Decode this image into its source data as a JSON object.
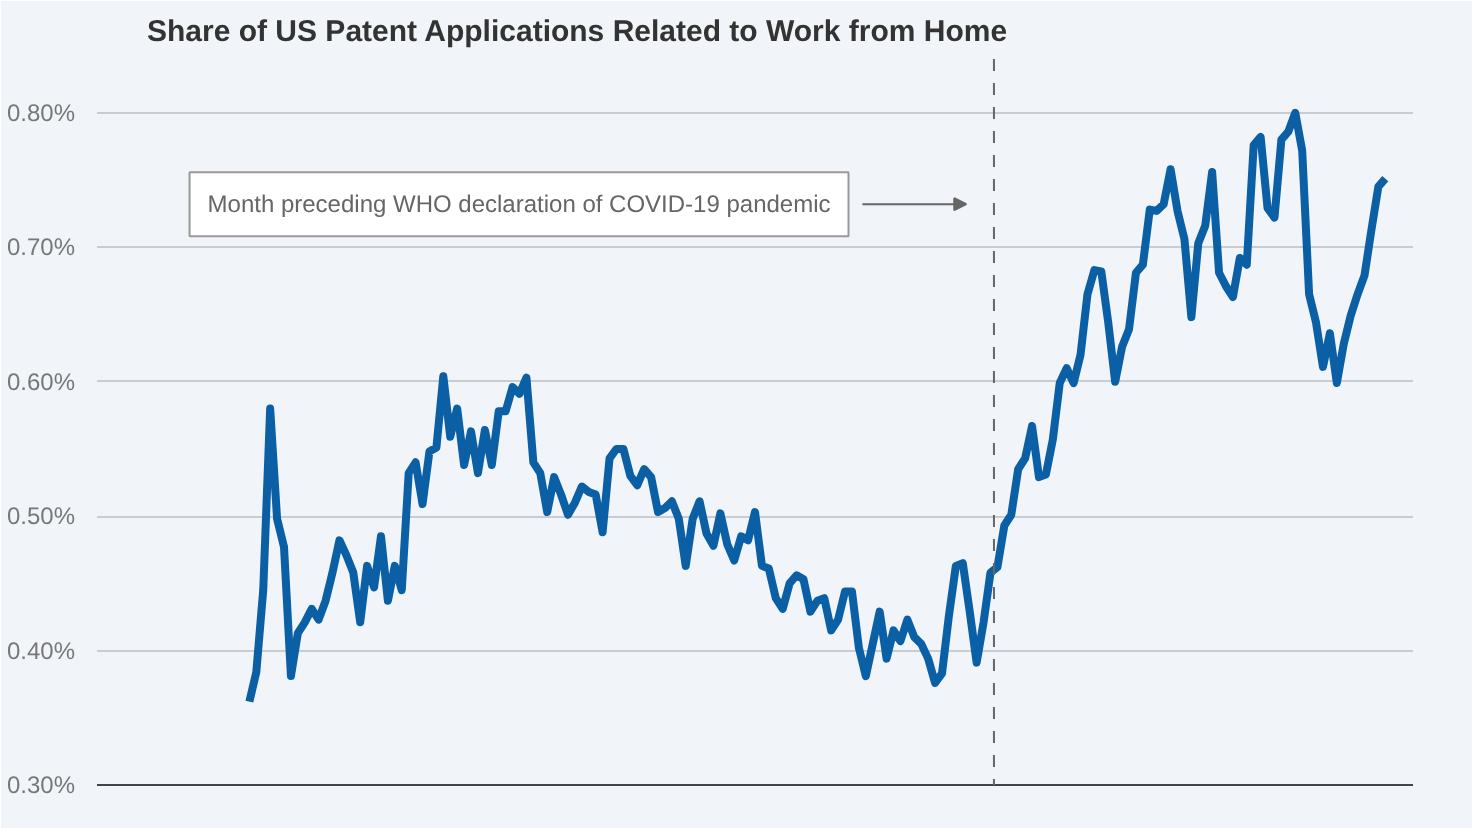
{
  "chart_data": {
    "type": "line",
    "title": "Share of US Patent Applications Related to Work from Home",
    "categories": [
      null,
      null,
      null,
      null,
      null,
      null,
      null,
      null,
      null,
      null,
      null,
      null,
      null,
      null,
      null,
      null,
      null,
      null,
      null,
      null,
      null,
      null,
      null,
      null,
      null,
      null,
      null,
      null,
      null,
      null,
      null,
      null,
      null,
      null,
      null,
      null,
      null,
      null,
      null,
      null,
      null,
      null,
      null,
      null,
      null,
      null,
      null,
      null,
      null,
      null,
      null,
      null,
      null,
      null,
      null,
      null,
      null,
      null,
      null,
      null,
      null,
      null,
      null,
      null,
      null,
      null,
      null,
      null,
      null,
      null,
      null,
      null,
      null,
      null,
      null,
      null,
      null,
      null,
      null,
      null,
      null,
      null,
      null,
      null,
      null,
      null,
      null,
      null,
      null,
      null,
      null,
      null,
      null,
      null,
      null,
      null,
      null,
      null,
      null,
      null,
      null,
      null,
      null,
      null,
      null,
      null,
      null,
      null,
      null,
      null,
      null,
      null,
      null,
      null,
      null,
      null,
      null,
      null,
      null,
      null,
      null,
      null,
      null,
      null,
      null,
      null,
      null,
      null,
      null,
      null,
      null,
      null,
      null,
      null,
      null,
      null,
      null,
      null,
      null,
      null,
      null,
      null,
      null,
      null,
      null,
      null,
      null,
      null,
      null,
      null,
      null,
      null,
      null,
      null,
      null,
      null,
      null,
      null,
      null,
      null,
      null,
      null,
      null,
      null,
      null
    ],
    "series": [
      {
        "color": "#0b5fa5",
        "values": [
          0.362,
          0.384,
          0.445,
          0.58,
          0.498,
          0.477,
          0.381,
          0.413,
          0.421,
          0.431,
          0.423,
          0.437,
          0.458,
          0.482,
          0.471,
          0.458,
          0.421,
          0.463,
          0.447,
          0.485,
          0.437,
          0.463,
          0.445,
          0.532,
          0.54,
          0.509,
          0.548,
          0.551,
          0.604,
          0.559,
          0.58,
          0.538,
          0.563,
          0.532,
          0.564,
          0.538,
          0.578,
          0.578,
          0.596,
          0.591,
          0.603,
          0.54,
          0.532,
          0.503,
          0.529,
          0.516,
          0.501,
          0.51,
          0.522,
          0.518,
          0.516,
          0.488,
          0.543,
          0.55,
          0.55,
          0.53,
          0.523,
          0.535,
          0.529,
          0.503,
          0.506,
          0.511,
          0.498,
          0.463,
          0.498,
          0.511,
          0.487,
          0.478,
          0.502,
          0.479,
          0.467,
          0.485,
          0.482,
          0.503,
          0.463,
          0.461,
          0.439,
          0.431,
          0.45,
          0.456,
          0.453,
          0.429,
          0.437,
          0.439,
          0.415,
          0.423,
          0.444,
          0.444,
          0.402,
          0.381,
          0.405,
          0.429,
          0.394,
          0.415,
          0.407,
          0.423,
          0.41,
          0.405,
          0.394,
          0.376,
          0.383,
          0.426,
          0.463,
          0.465,
          0.429,
          0.391,
          0.421,
          0.458,
          0.462,
          0.493,
          0.501,
          0.535,
          0.543,
          0.567,
          0.529,
          0.531,
          0.557,
          0.599,
          0.61,
          0.599,
          0.62,
          0.665,
          0.683,
          0.682,
          0.644,
          0.6,
          0.626,
          0.639,
          0.681,
          0.687,
          0.728,
          0.727,
          0.732,
          0.758,
          0.727,
          0.706,
          0.648,
          0.703,
          0.716,
          0.756,
          0.681,
          0.671,
          0.663,
          0.692,
          0.687,
          0.776,
          0.782,
          0.729,
          0.722,
          0.78,
          0.786,
          0.8,
          0.772,
          0.665,
          0.644,
          0.611,
          0.636,
          0.599,
          0.628,
          0.649,
          0.665,
          0.679,
          0.713,
          0.745,
          0.751
        ]
      }
    ],
    "ylim": [
      0.3,
      0.84
    ],
    "yticks": [
      {
        "value": 0.3,
        "label": "0.30%"
      },
      {
        "value": 0.4,
        "label": "0.40%"
      },
      {
        "value": 0.5,
        "label": "0.50%"
      },
      {
        "value": 0.6,
        "label": "0.60%"
      },
      {
        "value": 0.7,
        "label": "0.70%"
      },
      {
        "value": 0.8,
        "label": "0.80%"
      }
    ],
    "tick_labels": "y",
    "grid": "y",
    "annotations": [
      "Month preceding WHO declaration of COVID-19 pandemic"
    ]
  }
}
